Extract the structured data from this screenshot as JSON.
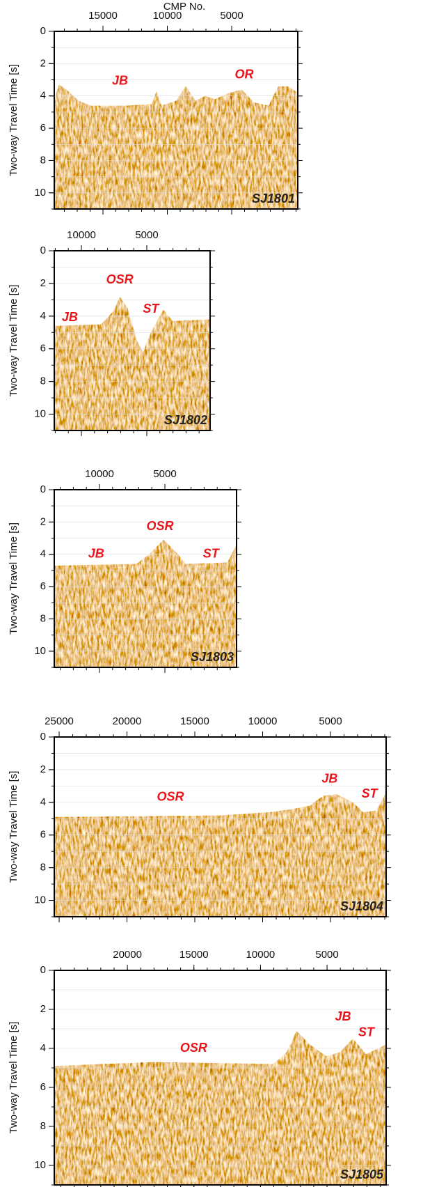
{
  "x_axis_label": "CMP No.",
  "panels": [
    {
      "id": "SJ1801",
      "y_axis_label": "Two-way Travel Time [s]",
      "x_ticks": [
        15000,
        10000,
        5000
      ],
      "y_ticks": [
        0,
        2,
        4,
        6,
        8,
        10
      ],
      "annotations": [
        "JB",
        "OR"
      ]
    },
    {
      "id": "SJ1802",
      "y_axis_label": "Two-way Travel Time [s]",
      "x_ticks": [
        10000,
        5000
      ],
      "y_ticks": [
        0,
        2,
        4,
        6,
        8,
        10
      ],
      "annotations": [
        "OSR",
        "JB",
        "ST"
      ]
    },
    {
      "id": "SJ1803",
      "y_axis_label": "Two-way Travel Time [s]",
      "x_ticks": [
        10000,
        5000
      ],
      "y_ticks": [
        0,
        2,
        4,
        6,
        8,
        10
      ],
      "annotations": [
        "OSR",
        "JB",
        "ST"
      ]
    },
    {
      "id": "SJ1804",
      "y_axis_label": "Two-way Travel Time [s]",
      "x_ticks": [
        25000,
        20000,
        15000,
        10000,
        5000
      ],
      "y_ticks": [
        0,
        2,
        4,
        6,
        8,
        10
      ],
      "annotations": [
        "OSR",
        "JB",
        "ST"
      ]
    },
    {
      "id": "SJ1805",
      "y_axis_label": "Two-way Travel Time [s]",
      "x_ticks": [
        20000,
        15000,
        10000,
        5000
      ],
      "y_ticks": [
        0,
        2,
        4,
        6,
        8,
        10
      ],
      "annotations": [
        "OSR",
        "JB",
        "ST"
      ]
    }
  ]
}
